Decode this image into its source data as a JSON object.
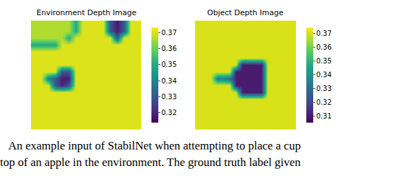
{
  "chart_data": [
    {
      "type": "heatmap",
      "title": "Environment Depth Image",
      "color": "Viridis",
      "tick_labels": false,
      "colorbar": {
        "range": [
          0.314,
          0.373
        ],
        "ticks": [
          0.32,
          0.33,
          0.34,
          0.35,
          0.36,
          0.37
        ]
      },
      "z": [
        [
          0.366,
          0.366,
          0.366,
          0.366,
          0.366,
          0.366,
          0.35,
          0.37,
          0.37,
          0.37,
          0.37,
          0.33,
          0.318,
          0.33,
          0.37,
          0.37
        ],
        [
          0.366,
          0.366,
          0.366,
          0.366,
          0.366,
          0.366,
          0.35,
          0.37,
          0.37,
          0.37,
          0.37,
          0.33,
          0.318,
          0.33,
          0.37,
          0.37
        ],
        [
          0.366,
          0.366,
          0.366,
          0.366,
          0.366,
          0.35,
          0.37,
          0.37,
          0.37,
          0.37,
          0.37,
          0.37,
          0.33,
          0.37,
          0.37,
          0.37
        ],
        [
          0.35,
          0.35,
          0.35,
          0.35,
          0.37,
          0.37,
          0.37,
          0.37,
          0.37,
          0.37,
          0.37,
          0.37,
          0.37,
          0.37,
          0.37,
          0.37
        ],
        [
          0.37,
          0.37,
          0.37,
          0.37,
          0.37,
          0.37,
          0.37,
          0.37,
          0.37,
          0.37,
          0.37,
          0.37,
          0.37,
          0.37,
          0.37,
          0.37
        ],
        [
          0.37,
          0.37,
          0.37,
          0.37,
          0.37,
          0.37,
          0.37,
          0.37,
          0.37,
          0.37,
          0.37,
          0.37,
          0.37,
          0.37,
          0.37,
          0.37
        ],
        [
          0.37,
          0.37,
          0.37,
          0.37,
          0.37,
          0.37,
          0.37,
          0.37,
          0.37,
          0.37,
          0.37,
          0.37,
          0.37,
          0.37,
          0.37,
          0.37
        ],
        [
          0.37,
          0.37,
          0.37,
          0.37,
          0.33,
          0.33,
          0.37,
          0.37,
          0.37,
          0.37,
          0.37,
          0.37,
          0.37,
          0.37,
          0.37,
          0.37
        ],
        [
          0.37,
          0.37,
          0.34,
          0.33,
          0.318,
          0.318,
          0.37,
          0.37,
          0.37,
          0.37,
          0.37,
          0.37,
          0.37,
          0.37,
          0.37,
          0.37
        ],
        [
          0.37,
          0.37,
          0.37,
          0.33,
          0.32,
          0.33,
          0.37,
          0.37,
          0.37,
          0.37,
          0.37,
          0.37,
          0.37,
          0.37,
          0.37,
          0.37
        ],
        [
          0.37,
          0.37,
          0.37,
          0.37,
          0.37,
          0.37,
          0.37,
          0.37,
          0.37,
          0.37,
          0.37,
          0.37,
          0.37,
          0.37,
          0.37,
          0.37
        ],
        [
          0.37,
          0.37,
          0.37,
          0.37,
          0.37,
          0.37,
          0.37,
          0.37,
          0.37,
          0.37,
          0.37,
          0.37,
          0.37,
          0.37,
          0.37,
          0.37
        ],
        [
          0.37,
          0.37,
          0.37,
          0.37,
          0.37,
          0.37,
          0.37,
          0.37,
          0.37,
          0.37,
          0.37,
          0.37,
          0.37,
          0.37,
          0.37,
          0.37
        ],
        [
          0.37,
          0.37,
          0.37,
          0.37,
          0.37,
          0.37,
          0.37,
          0.37,
          0.37,
          0.37,
          0.37,
          0.37,
          0.37,
          0.37,
          0.37,
          0.37
        ],
        [
          0.37,
          0.37,
          0.37,
          0.37,
          0.37,
          0.37,
          0.37,
          0.37,
          0.37,
          0.37,
          0.37,
          0.37,
          0.37,
          0.37,
          0.37,
          0.37
        ],
        [
          0.37,
          0.37,
          0.37,
          0.37,
          0.37,
          0.37,
          0.37,
          0.37,
          0.37,
          0.37,
          0.37,
          0.37,
          0.37,
          0.37,
          0.37,
          0.37
        ]
      ]
    },
    {
      "type": "heatmap",
      "title": "Object Depth Image",
      "color": "Viridis",
      "tick_labels": false,
      "colorbar": {
        "range": [
          0.305,
          0.374
        ],
        "ticks": [
          0.31,
          0.32,
          0.33,
          0.34,
          0.35,
          0.36,
          0.37
        ]
      },
      "z": [
        [
          0.37,
          0.37,
          0.37,
          0.37,
          0.37,
          0.37,
          0.37,
          0.37,
          0.37,
          0.37,
          0.37,
          0.37,
          0.37,
          0.37,
          0.37,
          0.37
        ],
        [
          0.37,
          0.37,
          0.37,
          0.37,
          0.37,
          0.37,
          0.37,
          0.37,
          0.37,
          0.37,
          0.37,
          0.37,
          0.37,
          0.37,
          0.37,
          0.37
        ],
        [
          0.37,
          0.37,
          0.37,
          0.37,
          0.37,
          0.37,
          0.37,
          0.37,
          0.37,
          0.37,
          0.37,
          0.37,
          0.37,
          0.37,
          0.37,
          0.37
        ],
        [
          0.37,
          0.37,
          0.37,
          0.37,
          0.37,
          0.37,
          0.37,
          0.37,
          0.37,
          0.37,
          0.37,
          0.37,
          0.37,
          0.37,
          0.37,
          0.37
        ],
        [
          0.37,
          0.37,
          0.37,
          0.37,
          0.37,
          0.37,
          0.37,
          0.37,
          0.37,
          0.37,
          0.37,
          0.37,
          0.37,
          0.37,
          0.37,
          0.37
        ],
        [
          0.37,
          0.37,
          0.37,
          0.37,
          0.37,
          0.37,
          0.37,
          0.37,
          0.37,
          0.37,
          0.37,
          0.37,
          0.37,
          0.37,
          0.37,
          0.37
        ],
        [
          0.37,
          0.37,
          0.37,
          0.37,
          0.37,
          0.37,
          0.37,
          0.31,
          0.31,
          0.31,
          0.31,
          0.37,
          0.37,
          0.37,
          0.37,
          0.37
        ],
        [
          0.37,
          0.37,
          0.37,
          0.37,
          0.37,
          0.37,
          0.31,
          0.31,
          0.31,
          0.31,
          0.31,
          0.37,
          0.37,
          0.37,
          0.37,
          0.37
        ],
        [
          0.37,
          0.37,
          0.37,
          0.335,
          0.335,
          0.33,
          0.31,
          0.31,
          0.31,
          0.31,
          0.31,
          0.37,
          0.37,
          0.37,
          0.37,
          0.37
        ],
        [
          0.37,
          0.37,
          0.37,
          0.37,
          0.37,
          0.37,
          0.31,
          0.31,
          0.31,
          0.31,
          0.31,
          0.37,
          0.37,
          0.37,
          0.37,
          0.37
        ],
        [
          0.37,
          0.37,
          0.37,
          0.37,
          0.37,
          0.37,
          0.37,
          0.31,
          0.31,
          0.31,
          0.31,
          0.37,
          0.37,
          0.37,
          0.37,
          0.37
        ],
        [
          0.37,
          0.37,
          0.37,
          0.37,
          0.37,
          0.37,
          0.37,
          0.37,
          0.37,
          0.37,
          0.37,
          0.37,
          0.37,
          0.37,
          0.37,
          0.37
        ],
        [
          0.37,
          0.37,
          0.37,
          0.37,
          0.37,
          0.37,
          0.37,
          0.37,
          0.37,
          0.37,
          0.37,
          0.37,
          0.37,
          0.37,
          0.37,
          0.37
        ],
        [
          0.37,
          0.37,
          0.37,
          0.37,
          0.37,
          0.37,
          0.37,
          0.37,
          0.37,
          0.37,
          0.37,
          0.37,
          0.37,
          0.37,
          0.37,
          0.37
        ],
        [
          0.37,
          0.37,
          0.37,
          0.37,
          0.37,
          0.37,
          0.37,
          0.37,
          0.37,
          0.37,
          0.37,
          0.37,
          0.37,
          0.37,
          0.37,
          0.37
        ],
        [
          0.37,
          0.37,
          0.37,
          0.37,
          0.37,
          0.37,
          0.37,
          0.37,
          0.37,
          0.37,
          0.37,
          0.37,
          0.37,
          0.37,
          0.37,
          0.37
        ]
      ]
    }
  ],
  "caption": [
    "An example input of StabilNet when attempting to place a cup",
    "top of an apple in the environment. The ground truth label given"
  ]
}
